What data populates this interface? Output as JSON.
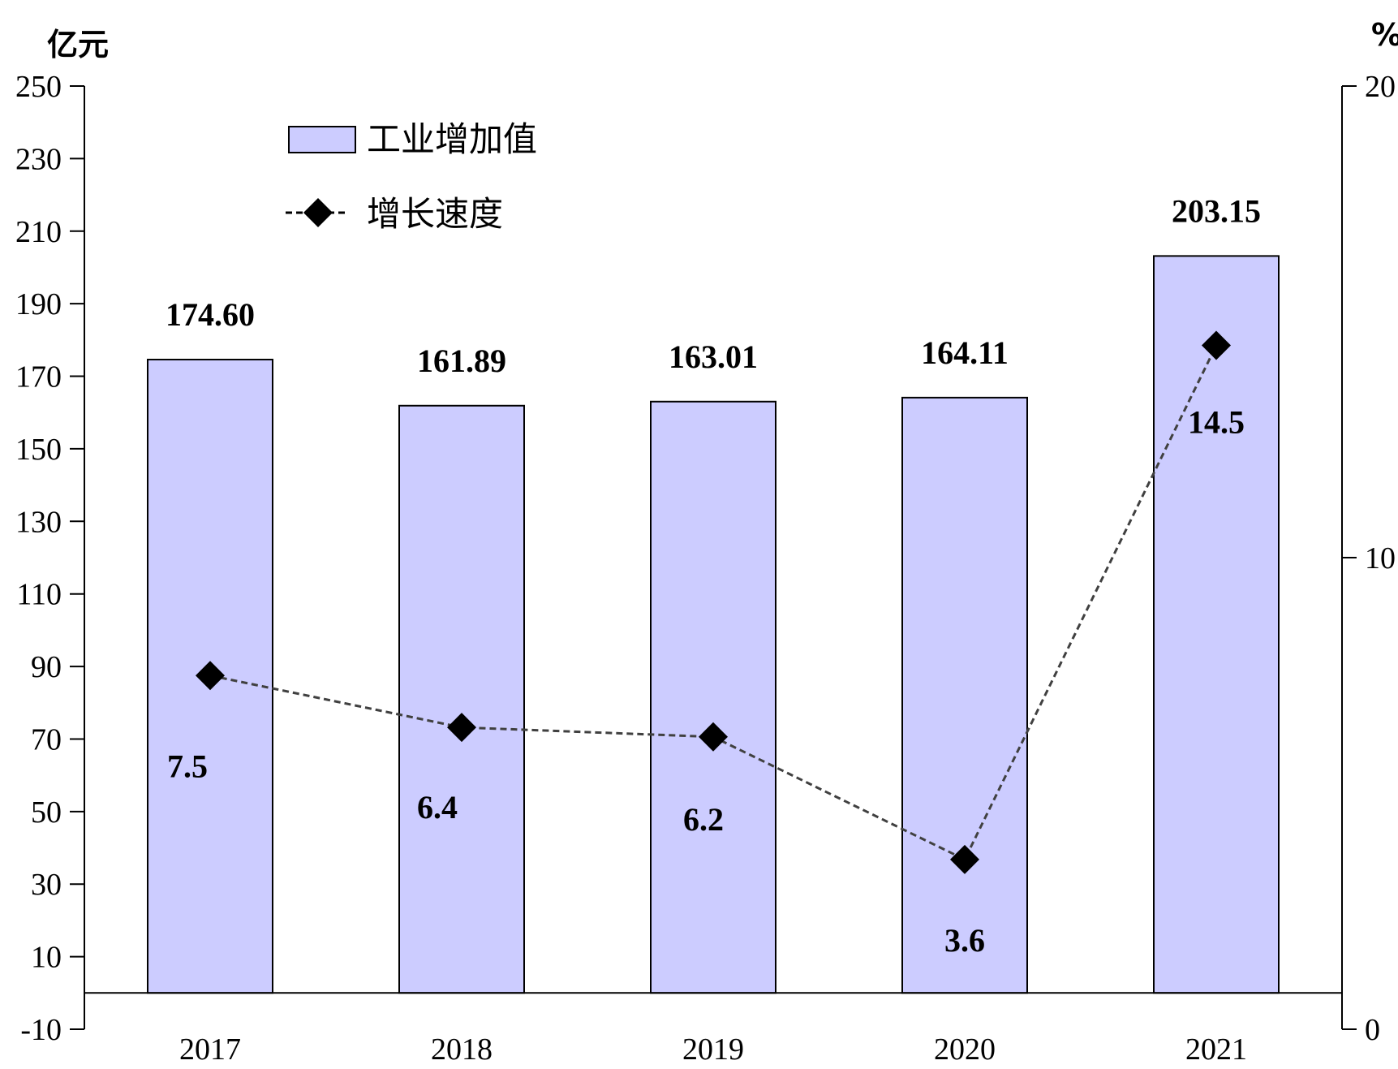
{
  "chart_data": {
    "type": "bar",
    "categories": [
      "2017",
      "2018",
      "2019",
      "2020",
      "2021"
    ],
    "series": [
      {
        "name": "工业增加值",
        "type": "bar",
        "axis": "left",
        "values": [
          174.6,
          161.89,
          163.01,
          164.11,
          203.15
        ],
        "labels": [
          "174.60",
          "161.89",
          "163.01",
          "164.11",
          "203.15"
        ],
        "color": "#ccccff"
      },
      {
        "name": "增长速度",
        "type": "line",
        "axis": "right",
        "values": [
          7.5,
          6.4,
          6.2,
          3.6,
          14.5
        ],
        "labels": [
          "7.5",
          "6.4",
          "6.2",
          "3.6",
          "14.5"
        ],
        "color": "#000000",
        "line_style": "dashed",
        "marker": "diamond"
      }
    ],
    "left_axis": {
      "unit": "亿元",
      "ylim": [
        -10,
        250
      ],
      "ticks": [
        250,
        230,
        210,
        190,
        170,
        150,
        130,
        110,
        90,
        70,
        50,
        30,
        10,
        -10
      ]
    },
    "right_axis": {
      "unit": "%",
      "ylim": [
        0,
        20
      ],
      "ticks": [
        20,
        10,
        0
      ]
    },
    "legend_position": "top-left",
    "grid": false
  }
}
